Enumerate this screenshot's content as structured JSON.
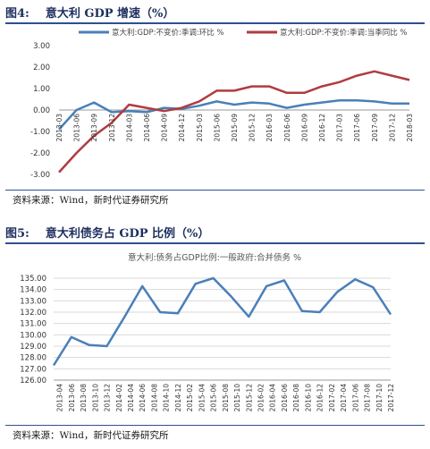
{
  "fig4": {
    "label": "图4:",
    "title": "意大利 GDP 增速（%）",
    "source": "资料来源：Wind，新时代证券研究所"
  },
  "fig5": {
    "label": "图5:",
    "title": "意大利债务占 GDP 比例（%）",
    "source": "资料来源：Wind，新时代证券研究所"
  },
  "chart_data": [
    {
      "type": "line",
      "title": "",
      "xlabel": "",
      "ylabel": "",
      "ylim": [
        -3.0,
        3.0
      ],
      "yticks": [
        "3.00",
        "2.00",
        "1.00",
        "0.00",
        "-1.00",
        "-2.00",
        "-3.00"
      ],
      "grid": false,
      "legend_position": "top",
      "categories": [
        "2013-03",
        "2013-06",
        "2013-09",
        "2013-12",
        "2014-03",
        "2014-06",
        "2014-09",
        "2014-12",
        "2015-03",
        "2015-06",
        "2015-09",
        "2015-12",
        "2016-03",
        "2016-06",
        "2016-09",
        "2016-12",
        "2017-03",
        "2017-06",
        "2017-09",
        "2017-12",
        "2018-03"
      ],
      "series": [
        {
          "name": "意大利:GDP:不变价:季调:环比 %",
          "color": "#4a7fba",
          "values": [
            -0.9,
            0.0,
            0.35,
            -0.1,
            -0.05,
            -0.1,
            0.1,
            0.05,
            0.2,
            0.4,
            0.25,
            0.35,
            0.3,
            0.1,
            0.25,
            0.35,
            0.45,
            0.45,
            0.4,
            0.3,
            0.3
          ]
        },
        {
          "name": "意大利:GDP:不变价:季调:当季同比 %",
          "color": "#b03c3f",
          "values": [
            -2.9,
            -2.0,
            -1.2,
            -0.6,
            0.25,
            0.1,
            -0.05,
            0.1,
            0.4,
            0.9,
            0.9,
            1.1,
            1.1,
            0.8,
            0.8,
            1.1,
            1.3,
            1.6,
            1.8,
            1.6,
            1.4
          ]
        }
      ]
    },
    {
      "type": "line",
      "title": "意大利:债务占GDP比例:一般政府:合并债务 %",
      "xlabel": "",
      "ylabel": "",
      "ylim": [
        126.0,
        135.0
      ],
      "yticks": [
        "135.00",
        "134.00",
        "133.00",
        "132.00",
        "131.00",
        "130.00",
        "129.00",
        "128.00",
        "127.00",
        "126.00"
      ],
      "grid": true,
      "categories": [
        "2013-04",
        "2013-06",
        "2013-08",
        "2013-10",
        "2013-12",
        "2014-02",
        "2014-04",
        "2014-06",
        "2014-08",
        "2014-10",
        "2014-12",
        "2015-02",
        "2015-04",
        "2015-06",
        "2015-08",
        "2015-10",
        "2015-12",
        "2016-02",
        "2016-04",
        "2016-06",
        "2016-08",
        "2016-10",
        "2016-12",
        "2017-02",
        "2017-04",
        "2017-06",
        "2017-08",
        "2017-10",
        "2017-12"
      ],
      "series": [
        {
          "name": "意大利:债务占GDP比例:一般政府:合并债务 %",
          "color": "#4a7fba",
          "x": [
            "2013-03",
            "2013-06",
            "2013-09",
            "2013-12",
            "2014-03",
            "2014-06",
            "2014-09",
            "2014-12",
            "2015-03",
            "2015-06",
            "2015-09",
            "2015-12",
            "2016-03",
            "2016-06",
            "2016-09",
            "2016-12",
            "2017-03",
            "2017-06",
            "2017-09",
            "2017-12"
          ],
          "values": [
            127.3,
            129.8,
            129.1,
            129.0,
            131.6,
            134.3,
            132.0,
            131.9,
            134.5,
            135.0,
            133.4,
            131.6,
            134.3,
            134.8,
            132.1,
            132.0,
            133.8,
            134.9,
            134.2,
            131.8
          ]
        }
      ]
    }
  ]
}
